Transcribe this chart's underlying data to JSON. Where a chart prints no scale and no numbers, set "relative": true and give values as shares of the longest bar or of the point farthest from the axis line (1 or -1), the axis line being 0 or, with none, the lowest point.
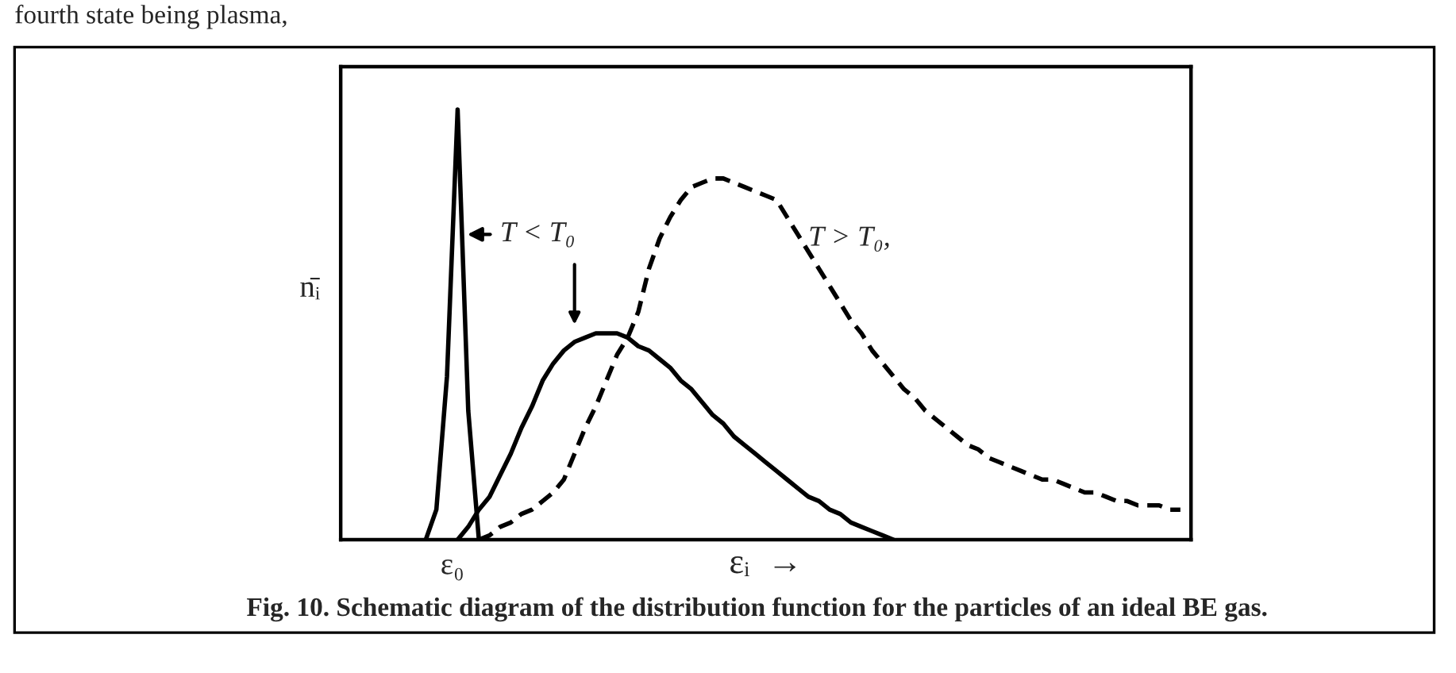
{
  "chart_data": {
    "type": "line",
    "relative": true,
    "title": "Fig. 10. Schematic diagram of the distribution function for the particles of an ideal BE gas.",
    "xlabel": "εᵢ  →",
    "ylabel": "n̄ᵢ",
    "tick_labels": false,
    "categories": [
      null,
      null,
      null,
      null,
      null,
      null,
      null,
      null,
      null,
      null,
      null,
      null,
      null,
      null,
      null,
      null,
      null,
      null,
      null,
      null,
      null,
      null,
      null,
      null,
      null,
      null,
      null,
      null,
      null,
      null,
      null,
      null,
      null,
      null,
      null,
      null,
      null,
      null,
      null,
      null,
      null,
      null,
      null,
      null,
      null,
      null,
      null,
      null,
      null,
      null,
      null,
      null,
      null,
      null,
      null,
      null,
      null,
      null,
      null,
      null,
      null,
      null,
      null,
      null,
      null,
      null,
      null,
      null,
      null,
      null,
      null,
      null,
      null,
      null,
      null,
      null,
      null,
      null,
      null,
      null,
      null
    ],
    "series": [
      {
        "color": "#000000",
        "line_style": "solid",
        "values": [
          null,
          null,
          null,
          null,
          null,
          null,
          null,
          null,
          0,
          0.07,
          0.38,
          1.0,
          0.3,
          0,
          null,
          null,
          null,
          null,
          null,
          null,
          null,
          null,
          null,
          null,
          null,
          null,
          null,
          null,
          null,
          null,
          null,
          null,
          null,
          null,
          null,
          null,
          null,
          null,
          null,
          null,
          null,
          null,
          null,
          null,
          null,
          null,
          null,
          null,
          null,
          null,
          null,
          null,
          null,
          null,
          null,
          null,
          null,
          null,
          null,
          null,
          null,
          null,
          null,
          null,
          null,
          null,
          null,
          null,
          null,
          null,
          null,
          null,
          null,
          null,
          null,
          null,
          null,
          null,
          null,
          null,
          null
        ]
      },
      {
        "color": "#000000",
        "line_style": "solid",
        "values": [
          null,
          null,
          null,
          null,
          null,
          null,
          null,
          null,
          null,
          null,
          null,
          0,
          0.03,
          0.07,
          0.1,
          0.15,
          0.2,
          0.26,
          0.31,
          0.37,
          0.41,
          0.44,
          0.46,
          0.47,
          0.48,
          0.48,
          0.48,
          0.47,
          0.45,
          0.44,
          0.42,
          0.4,
          0.37,
          0.35,
          0.32,
          0.29,
          0.27,
          0.24,
          0.22,
          0.2,
          0.18,
          0.16,
          0.14,
          0.12,
          0.1,
          0.09,
          0.07,
          0.06,
          0.04,
          0.03,
          0.02,
          0.01,
          0,
          null,
          null,
          null,
          null,
          null,
          null,
          null,
          null,
          null,
          null,
          null,
          null,
          null,
          null,
          null,
          null,
          null,
          null,
          null,
          null,
          null,
          null,
          null,
          null,
          null,
          null,
          null,
          null
        ]
      },
      {
        "color": "#000000",
        "line_style": "dashed",
        "values": [
          null,
          null,
          null,
          null,
          null,
          null,
          null,
          null,
          null,
          null,
          null,
          null,
          null,
          0,
          0.01,
          0.03,
          0.04,
          0.06,
          0.07,
          0.09,
          0.11,
          0.14,
          0.2,
          0.26,
          0.31,
          0.37,
          0.43,
          0.47,
          0.53,
          0.63,
          0.7,
          0.75,
          0.79,
          0.82,
          0.83,
          0.84,
          0.84,
          0.83,
          0.82,
          0.81,
          0.8,
          0.79,
          0.75,
          0.71,
          0.67,
          0.63,
          0.59,
          0.55,
          0.51,
          0.48,
          0.44,
          0.41,
          0.38,
          0.35,
          0.33,
          0.3,
          0.28,
          0.26,
          0.24,
          0.22,
          0.21,
          0.19,
          0.18,
          0.17,
          0.16,
          0.15,
          0.14,
          0.14,
          0.13,
          0.12,
          0.11,
          0.11,
          0.1,
          0.09,
          0.09,
          0.08,
          0.08,
          0.08,
          0.07,
          0.07,
          null
        ]
      }
    ],
    "annotations": [
      "fourth state being plasma,",
      "ε₀",
      "T < T₀",
      "T > T₀,"
    ]
  }
}
